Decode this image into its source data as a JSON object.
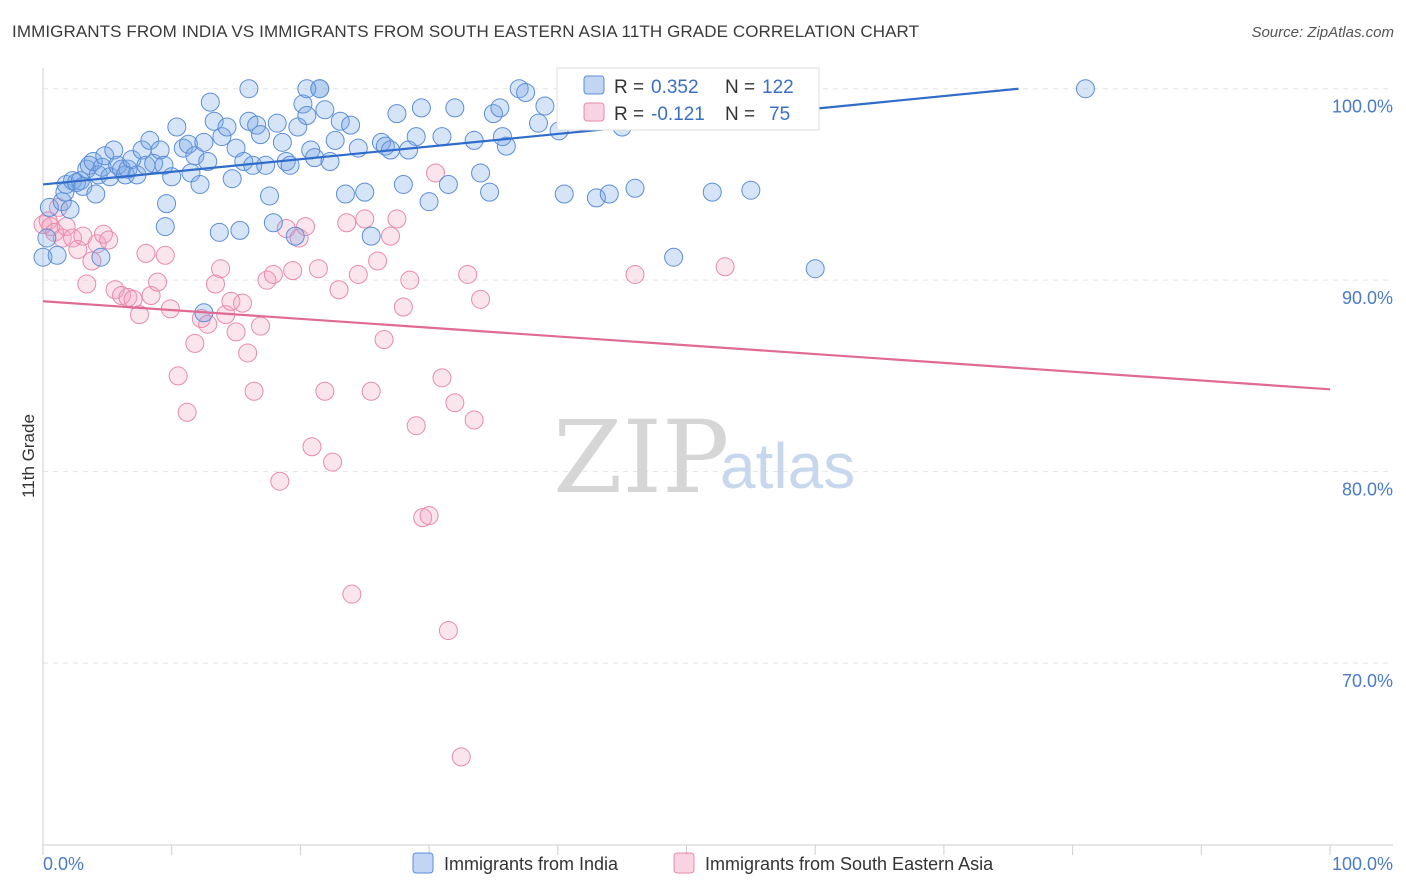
{
  "title": "IMMIGRANTS FROM INDIA VS IMMIGRANTS FROM SOUTH EASTERN ASIA 11TH GRADE CORRELATION CHART",
  "source": "Source: ZipAtlas.com",
  "watermark": {
    "zip": "ZIP",
    "atlas": "atlas"
  },
  "colors": {
    "india": "#5b8ed8",
    "india_fill": "rgba(120,165,230,0.30)",
    "sea": "#e88aab",
    "sea_fill": "rgba(240,160,190,0.28)",
    "india_line": "#2f6ccc",
    "sea_line": "#e06a94",
    "tick_text": "#4a7ac8"
  },
  "stats": [
    {
      "r_label": "R =",
      "r_value": "0.352",
      "n_label": "N =",
      "n_value": "122"
    },
    {
      "r_label": "R =",
      "r_value": "-0.121",
      "n_label": "N =",
      "n_value": "75"
    }
  ],
  "chart_data": {
    "type": "scatter",
    "xlabel": "",
    "ylabel": "11th Grade",
    "xlim": [
      0,
      100
    ],
    "ylim": [
      60.5,
      101.5
    ],
    "x_tick_labels": [
      "0.0%",
      "100.0%"
    ],
    "y_ticks": [
      {
        "value": 100,
        "label": "100.0%"
      },
      {
        "value": 90,
        "label": "90.0%"
      },
      {
        "value": 80,
        "label": "80.0%"
      },
      {
        "value": 70,
        "label": "70.0%"
      }
    ],
    "grid": true,
    "legend_position": "bottom-center",
    "series": [
      {
        "name": "Immigrants from India",
        "trend": {
          "x": [
            0,
            75.8
          ],
          "y": [
            95.0,
            100.0
          ]
        },
        "points": [
          [
            0,
            91.2
          ],
          [
            0.3,
            92.2
          ],
          [
            0.5,
            93.8
          ],
          [
            1.1,
            91.3
          ],
          [
            1.5,
            94.1
          ],
          [
            1.7,
            94.6
          ],
          [
            1.8,
            95.0
          ],
          [
            2.1,
            93.7
          ],
          [
            2.3,
            95.2
          ],
          [
            2.6,
            95.1
          ],
          [
            2.9,
            95.2
          ],
          [
            3.1,
            94.9
          ],
          [
            3.4,
            95.8
          ],
          [
            3.6,
            96.0
          ],
          [
            3.9,
            96.2
          ],
          [
            4.1,
            94.5
          ],
          [
            4.3,
            95.5
          ],
          [
            4.6,
            95.9
          ],
          [
            4.8,
            96.5
          ],
          [
            5.2,
            95.4
          ],
          [
            5.5,
            96.8
          ],
          [
            5.8,
            96.0
          ],
          [
            6.1,
            95.8
          ],
          [
            6.4,
            95.5
          ],
          [
            6.6,
            95.8
          ],
          [
            6.9,
            96.3
          ],
          [
            7.3,
            95.5
          ],
          [
            7.7,
            96.8
          ],
          [
            8.0,
            96.0
          ],
          [
            8.3,
            97.3
          ],
          [
            8.6,
            96.1
          ],
          [
            9.1,
            96.8
          ],
          [
            9.4,
            96.0
          ],
          [
            9.6,
            94.0
          ],
          [
            9.5,
            92.8
          ],
          [
            10.0,
            95.4
          ],
          [
            10.4,
            98.0
          ],
          [
            10.9,
            96.9
          ],
          [
            11.3,
            97.1
          ],
          [
            11.5,
            95.6
          ],
          [
            11.8,
            96.5
          ],
          [
            12.2,
            95.0
          ],
          [
            12.5,
            97.2
          ],
          [
            12.8,
            96.2
          ],
          [
            13.0,
            99.3
          ],
          [
            13.3,
            98.3
          ],
          [
            13.7,
            92.5
          ],
          [
            13.9,
            97.5
          ],
          [
            14.3,
            98.0
          ],
          [
            14.7,
            95.3
          ],
          [
            15.0,
            96.9
          ],
          [
            15.3,
            92.6
          ],
          [
            15.6,
            96.2
          ],
          [
            16.0,
            98.3
          ],
          [
            16.3,
            96.0
          ],
          [
            16.6,
            98.1
          ],
          [
            16.9,
            97.6
          ],
          [
            17.3,
            96.0
          ],
          [
            17.6,
            94.4
          ],
          [
            17.9,
            93.0
          ],
          [
            18.2,
            98.2
          ],
          [
            18.6,
            97.2
          ],
          [
            18.9,
            96.2
          ],
          [
            19.2,
            96.0
          ],
          [
            19.6,
            92.3
          ],
          [
            19.8,
            98.0
          ],
          [
            20.2,
            99.2
          ],
          [
            20.5,
            98.6
          ],
          [
            20.8,
            96.8
          ],
          [
            21.1,
            96.4
          ],
          [
            21.5,
            100.0
          ],
          [
            21.9,
            98.9
          ],
          [
            22.3,
            96.2
          ],
          [
            22.7,
            97.3
          ],
          [
            23.1,
            98.3
          ],
          [
            23.5,
            94.5
          ],
          [
            23.9,
            98.1
          ],
          [
            16.0,
            100.0
          ],
          [
            21.5,
            100.0
          ],
          [
            20.5,
            100.0
          ],
          [
            24.5,
            96.9
          ],
          [
            25.0,
            94.6
          ],
          [
            25.5,
            92.3
          ],
          [
            26.3,
            97.2
          ],
          [
            26.6,
            97.0
          ],
          [
            27.0,
            96.8
          ],
          [
            27.5,
            98.7
          ],
          [
            28.0,
            95.0
          ],
          [
            28.4,
            96.8
          ],
          [
            29.0,
            97.5
          ],
          [
            29.4,
            99.0
          ],
          [
            30.0,
            94.1
          ],
          [
            31.0,
            97.5
          ],
          [
            32.0,
            99.0
          ],
          [
            33.5,
            97.3
          ],
          [
            34.0,
            95.6
          ],
          [
            34.7,
            94.6
          ],
          [
            35.0,
            98.7
          ],
          [
            36.0,
            97.0
          ],
          [
            37.0,
            100.0
          ],
          [
            37.5,
            99.8
          ],
          [
            38.5,
            98.2
          ],
          [
            39.0,
            99.1
          ],
          [
            40.1,
            97.8
          ],
          [
            40.5,
            94.5
          ],
          [
            42.0,
            98.5
          ],
          [
            42.5,
            98.6
          ],
          [
            43.0,
            94.3
          ],
          [
            44.0,
            94.5
          ],
          [
            45.0,
            98.0
          ],
          [
            35.7,
            97.5
          ],
          [
            31.5,
            95.0
          ],
          [
            35.5,
            99.0
          ],
          [
            46.0,
            94.8
          ],
          [
            55.0,
            94.7
          ],
          [
            60.0,
            90.6
          ],
          [
            52.0,
            94.6
          ],
          [
            49.0,
            91.2
          ],
          [
            81.0,
            100.0
          ],
          [
            12.5,
            88.3
          ],
          [
            4.5,
            91.2
          ]
        ]
      },
      {
        "name": "Immigrants from South Eastern Asia",
        "trend": {
          "x": [
            0,
            100
          ],
          "y": [
            88.9,
            84.3
          ]
        },
        "points": [
          [
            0,
            92.9
          ],
          [
            0.4,
            93.1
          ],
          [
            0.6,
            92.8
          ],
          [
            0.9,
            92.5
          ],
          [
            1.2,
            93.8
          ],
          [
            1.5,
            92.2
          ],
          [
            1.8,
            92.8
          ],
          [
            2.3,
            92.2
          ],
          [
            2.7,
            91.6
          ],
          [
            3.1,
            92.3
          ],
          [
            3.4,
            89.8
          ],
          [
            3.8,
            91.0
          ],
          [
            4.2,
            91.9
          ],
          [
            4.7,
            92.4
          ],
          [
            5.1,
            92.1
          ],
          [
            5.6,
            89.5
          ],
          [
            6.1,
            89.2
          ],
          [
            6.6,
            89.1
          ],
          [
            7.0,
            89.0
          ],
          [
            7.5,
            88.2
          ],
          [
            8.0,
            91.4
          ],
          [
            8.4,
            89.2
          ],
          [
            8.9,
            89.9
          ],
          [
            9.5,
            91.3
          ],
          [
            9.9,
            88.5
          ],
          [
            10.5,
            85.0
          ],
          [
            11.2,
            83.1
          ],
          [
            11.8,
            86.7
          ],
          [
            12.3,
            88.0
          ],
          [
            12.8,
            87.7
          ],
          [
            13.4,
            89.8
          ],
          [
            13.8,
            90.6
          ],
          [
            14.2,
            88.2
          ],
          [
            14.6,
            88.9
          ],
          [
            15.0,
            87.3
          ],
          [
            15.5,
            88.8
          ],
          [
            15.9,
            86.2
          ],
          [
            16.4,
            84.2
          ],
          [
            16.9,
            87.6
          ],
          [
            17.4,
            90.0
          ],
          [
            17.9,
            90.3
          ],
          [
            18.4,
            79.5
          ],
          [
            18.9,
            92.7
          ],
          [
            19.4,
            90.5
          ],
          [
            19.9,
            92.2
          ],
          [
            20.4,
            92.8
          ],
          [
            20.9,
            81.3
          ],
          [
            21.4,
            90.6
          ],
          [
            21.9,
            84.2
          ],
          [
            22.5,
            80.5
          ],
          [
            23.0,
            89.5
          ],
          [
            23.6,
            93.0
          ],
          [
            24.0,
            73.6
          ],
          [
            24.5,
            90.3
          ],
          [
            25.0,
            93.2
          ],
          [
            25.5,
            84.2
          ],
          [
            26.0,
            91.0
          ],
          [
            26.5,
            86.9
          ],
          [
            27.0,
            92.3
          ],
          [
            27.5,
            93.2
          ],
          [
            28.0,
            88.6
          ],
          [
            28.5,
            90.0
          ],
          [
            29.0,
            82.4
          ],
          [
            29.5,
            77.6
          ],
          [
            30.0,
            77.7
          ],
          [
            30.5,
            95.6
          ],
          [
            31.0,
            84.9
          ],
          [
            31.5,
            71.7
          ],
          [
            32.0,
            83.6
          ],
          [
            32.5,
            65.1
          ],
          [
            33.0,
            90.3
          ],
          [
            33.5,
            82.7
          ],
          [
            34.0,
            89.0
          ],
          [
            53.0,
            90.7
          ],
          [
            46.0,
            90.3
          ]
        ]
      }
    ]
  },
  "legend": [
    {
      "label": "Immigrants from India"
    },
    {
      "label": "Immigrants from South Eastern Asia"
    }
  ]
}
